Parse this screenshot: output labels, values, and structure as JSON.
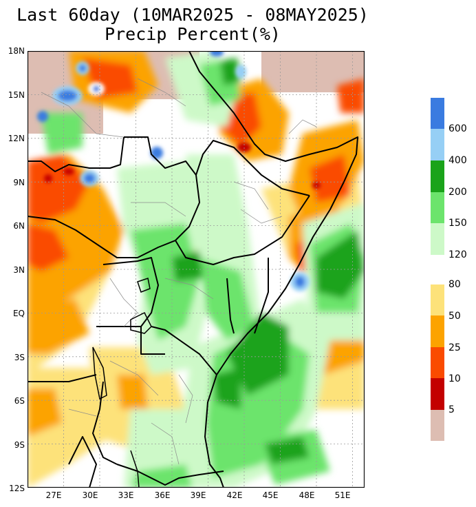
{
  "title": {
    "line1": "Last 60day (10MAR2025 - 08MAY2025)",
    "line2": "Precip Percent(%)"
  },
  "lat_labels": [
    "18N",
    "15N",
    "12N",
    "9N",
    "6N",
    "3N",
    "EQ",
    "3S",
    "6S",
    "9S",
    "12S"
  ],
  "lon_labels": [
    "27E",
    "30E",
    "33E",
    "36E",
    "39E",
    "42E",
    "45E",
    "48E",
    "51E"
  ],
  "map_extent": {
    "lon_min": 24,
    "lon_max": 52,
    "lat_min": -12,
    "lat_max": 18
  },
  "legend": {
    "upper": [
      {
        "label": "600",
        "color": "#3a7be0"
      },
      {
        "label": "400",
        "color": "#96cff5"
      },
      {
        "label": "200",
        "color": "#1aa31a"
      },
      {
        "label": "150",
        "color": "#6ce46c"
      },
      {
        "label": "120",
        "color": "#cdf9c8"
      }
    ],
    "lower": [
      {
        "label": "80",
        "color": "#fde27a"
      },
      {
        "label": "50",
        "color": "#fca300"
      },
      {
        "label": "25",
        "color": "#fa4b00"
      },
      {
        "label": "10",
        "color": "#c30000"
      },
      {
        "label": "5",
        "color": "#ddbdb2"
      }
    ]
  },
  "colors": {
    "no_data": "#ddbdb2",
    "near_normal": "#ffffff",
    "border": "#000000",
    "grid": "#9a9a9a"
  }
}
